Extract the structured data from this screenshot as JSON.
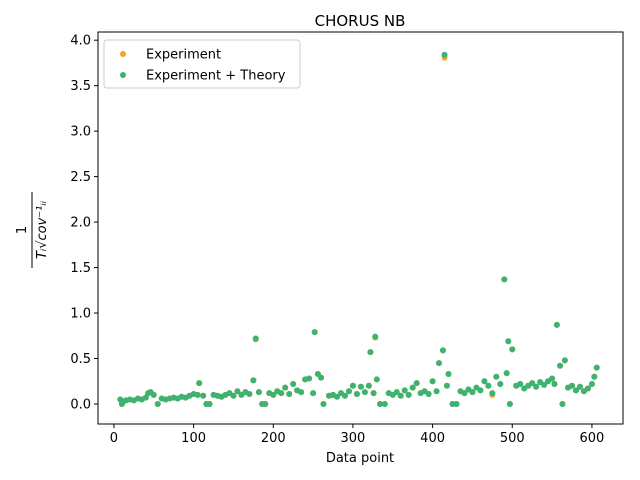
{
  "chart_data": {
    "type": "scatter",
    "title": "CHORUS NB",
    "xlabel": "Data point",
    "ylabel": {
      "numerator": "1",
      "denominator": "Tᵢ√cov⁻¹ᵢᵢ"
    },
    "legend": "upper left",
    "x": [
      8,
      10,
      15,
      20,
      25,
      30,
      35,
      40,
      43,
      46,
      50,
      55,
      60,
      65,
      70,
      75,
      80,
      85,
      90,
      95,
      100,
      105,
      107,
      112,
      116,
      120,
      125,
      130,
      135,
      140,
      145,
      150,
      155,
      160,
      165,
      170,
      175,
      178,
      182,
      186,
      190,
      195,
      200,
      205,
      210,
      215,
      220,
      225,
      230,
      235,
      240,
      245,
      250,
      252,
      256,
      260,
      263,
      270,
      275,
      280,
      285,
      290,
      295,
      300,
      305,
      310,
      315,
      320,
      322,
      326,
      328,
      330,
      334,
      340,
      345,
      350,
      355,
      360,
      365,
      370,
      375,
      380,
      385,
      390,
      395,
      400,
      405,
      408,
      413,
      415,
      418,
      420,
      425,
      430,
      435,
      440,
      445,
      450,
      455,
      460,
      465,
      470,
      475,
      480,
      485,
      490,
      493,
      495,
      497,
      500,
      505,
      510,
      515,
      520,
      525,
      530,
      535,
      540,
      545,
      550,
      553,
      556,
      560,
      563,
      566,
      570,
      575,
      580,
      585,
      590,
      595,
      600,
      603,
      606
    ],
    "series": [
      {
        "name": "Experiment",
        "color": "#ff9f1c",
        "values": [
          0.05,
          0.0,
          0.04,
          0.05,
          0.04,
          0.06,
          0.05,
          0.07,
          0.12,
          0.13,
          0.1,
          0.0,
          0.06,
          0.05,
          0.06,
          0.07,
          0.06,
          0.08,
          0.07,
          0.09,
          0.11,
          0.1,
          0.23,
          0.09,
          0.0,
          0.0,
          0.1,
          0.09,
          0.08,
          0.1,
          0.12,
          0.09,
          0.14,
          0.1,
          0.13,
          0.11,
          0.26,
          0.71,
          0.13,
          0.0,
          0.0,
          0.12,
          0.1,
          0.14,
          0.12,
          0.18,
          0.11,
          0.22,
          0.15,
          0.13,
          0.27,
          0.28,
          0.12,
          0.79,
          0.33,
          0.29,
          0.0,
          0.09,
          0.1,
          0.08,
          0.12,
          0.09,
          0.14,
          0.2,
          0.11,
          0.19,
          0.13,
          0.2,
          0.57,
          0.12,
          0.73,
          0.27,
          0.0,
          0.0,
          0.12,
          0.1,
          0.13,
          0.09,
          0.15,
          0.1,
          0.18,
          0.23,
          0.12,
          0.14,
          0.11,
          0.25,
          0.14,
          0.45,
          0.59,
          3.81,
          0.2,
          0.33,
          0.0,
          0.0,
          0.14,
          0.12,
          0.16,
          0.13,
          0.18,
          0.15,
          0.25,
          0.2,
          0.1,
          0.3,
          0.22,
          1.37,
          0.34,
          0.69,
          0.0,
          0.6,
          0.2,
          0.22,
          0.17,
          0.2,
          0.23,
          0.19,
          0.24,
          0.21,
          0.25,
          0.28,
          0.22,
          0.87,
          0.42,
          0.0,
          0.48,
          0.18,
          0.2,
          0.15,
          0.19,
          0.14,
          0.17,
          0.22,
          0.3,
          0.4
        ]
      },
      {
        "name": "Experiment + Theory",
        "color": "#3cb371",
        "values": [
          0.05,
          0.0,
          0.04,
          0.05,
          0.04,
          0.06,
          0.05,
          0.07,
          0.12,
          0.13,
          0.1,
          0.0,
          0.06,
          0.05,
          0.06,
          0.07,
          0.06,
          0.08,
          0.07,
          0.09,
          0.11,
          0.1,
          0.23,
          0.09,
          0.0,
          0.0,
          0.1,
          0.09,
          0.08,
          0.1,
          0.12,
          0.09,
          0.14,
          0.1,
          0.13,
          0.11,
          0.26,
          0.72,
          0.13,
          0.0,
          0.0,
          0.12,
          0.1,
          0.14,
          0.12,
          0.18,
          0.11,
          0.22,
          0.15,
          0.13,
          0.27,
          0.28,
          0.12,
          0.79,
          0.33,
          0.29,
          0.0,
          0.09,
          0.1,
          0.08,
          0.12,
          0.09,
          0.14,
          0.2,
          0.11,
          0.19,
          0.13,
          0.2,
          0.57,
          0.12,
          0.74,
          0.27,
          0.0,
          0.0,
          0.12,
          0.1,
          0.13,
          0.09,
          0.15,
          0.1,
          0.18,
          0.23,
          0.12,
          0.14,
          0.11,
          0.25,
          0.14,
          0.45,
          0.59,
          3.84,
          0.2,
          0.33,
          0.0,
          0.0,
          0.14,
          0.12,
          0.16,
          0.13,
          0.18,
          0.15,
          0.25,
          0.2,
          0.12,
          0.3,
          0.22,
          1.37,
          0.34,
          0.69,
          0.0,
          0.6,
          0.2,
          0.22,
          0.17,
          0.2,
          0.23,
          0.19,
          0.24,
          0.21,
          0.25,
          0.28,
          0.22,
          0.87,
          0.42,
          0.0,
          0.48,
          0.18,
          0.2,
          0.15,
          0.19,
          0.14,
          0.17,
          0.22,
          0.3,
          0.4
        ]
      }
    ],
    "xlim": [
      -20,
      639
    ],
    "ylim": [
      -0.22,
      4.09
    ],
    "xticks": [
      0,
      100,
      200,
      300,
      400,
      500,
      600
    ],
    "yticks": [
      {
        "value": 0,
        "label": "0.0"
      },
      {
        "value": 0.5,
        "label": "0.5"
      },
      {
        "value": 1,
        "label": "1.0"
      },
      {
        "value": 1.5,
        "label": "1.5"
      },
      {
        "value": 2,
        "label": "2.0"
      },
      {
        "value": 2.5,
        "label": "2.5"
      },
      {
        "value": 3,
        "label": "3.0"
      },
      {
        "value": 3.5,
        "label": "3.5"
      },
      {
        "value": 4,
        "label": "4.0"
      }
    ]
  }
}
